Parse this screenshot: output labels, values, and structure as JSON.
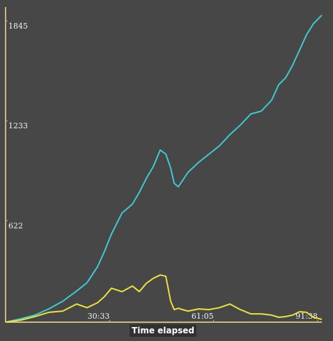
{
  "chart_data": {
    "type": "line",
    "x_label": "Time elapsed",
    "x": [
      0,
      4.5,
      8.59,
      12.68,
      16.77,
      20.86,
      23.93,
      27.0,
      29.04,
      31.09,
      34.16,
      37.23,
      39.27,
      41.32,
      43.36,
      45.41,
      47.04,
      48.48,
      49.5,
      50.73,
      51.95,
      53.59,
      56.66,
      59.72,
      62.79,
      65.86,
      68.93,
      72.0,
      75.07,
      78.13,
      80.18,
      82.22,
      84.27,
      86.32,
      88.36,
      90.41,
      92.86
    ],
    "series": [
      {
        "color": "#3ccbd4",
        "values": [
          0,
          21,
          43,
          81,
          128,
          191,
          242,
          340,
          434,
          540,
          667,
          723,
          795,
          880,
          952,
          1054,
          1029,
          944,
          850,
          829,
          867,
          918,
          978,
          1029,
          1080,
          1148,
          1207,
          1275,
          1292,
          1360,
          1454,
          1496,
          1573,
          1666,
          1760,
          1828,
          1880
        ]
      },
      {
        "color": "#ebe23c",
        "values": [
          0,
          13,
          34,
          60,
          68,
          111,
          89,
          119,
          157,
          208,
          187,
          221,
          187,
          238,
          268,
          289,
          281,
          128,
          77,
          85,
          77,
          68,
          81,
          77,
          89,
          111,
          77,
          51,
          51,
          43,
          30,
          34,
          43,
          64,
          60,
          30,
          17
        ]
      }
    ],
    "xlim": [
      0,
      92.86
    ],
    "xticks": [
      {
        "value": 30.55,
        "label": "30:33"
      },
      {
        "value": 61.08,
        "label": "61:05"
      },
      {
        "value": 91.63,
        "label": "91:38"
      }
    ],
    "ylim": [
      0,
      1900
    ],
    "yticks": [
      622,
      1233,
      1845
    ],
    "axis_color": "#cdb97e"
  }
}
